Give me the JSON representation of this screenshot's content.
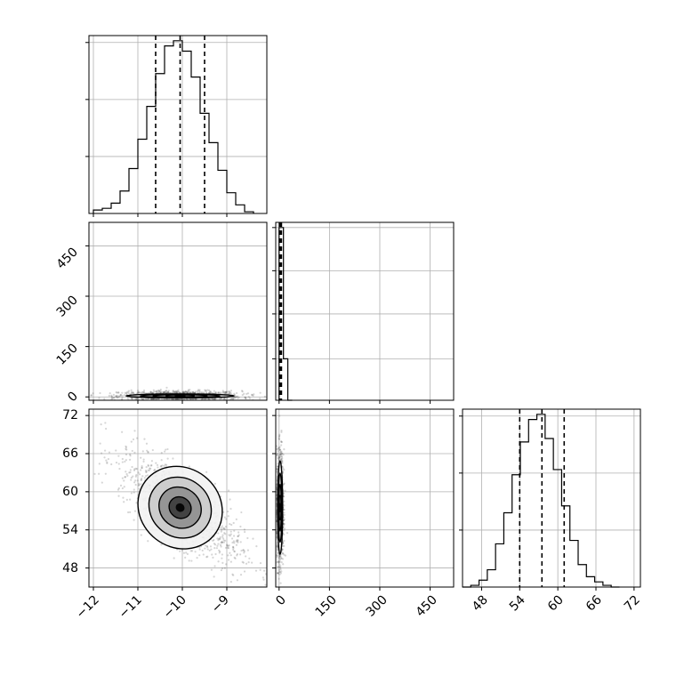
{
  "chart_data": {
    "type": "corner",
    "variables": 3,
    "grid": true,
    "colors": {
      "line": "#000000",
      "grid": "#b0b0b0",
      "points": "#444444"
    },
    "hist1": {
      "type": "histogram",
      "xlim": [
        -12.1,
        -8.1
      ],
      "bins_x": [
        -12.0,
        -11.8,
        -11.6,
        -11.4,
        -11.2,
        -11.0,
        -10.8,
        -10.6,
        -10.4,
        -10.2,
        -10.0,
        -9.8,
        -9.6,
        -9.4,
        -9.2,
        -9.0,
        -8.8,
        -8.6,
        -8.4
      ],
      "counts": [
        0.02,
        0.03,
        0.06,
        0.13,
        0.26,
        0.43,
        0.62,
        0.81,
        0.97,
        1.0,
        0.94,
        0.79,
        0.58,
        0.41,
        0.25,
        0.12,
        0.05,
        0.01
      ],
      "quantiles": [
        -10.6,
        -10.05,
        -9.5
      ]
    },
    "hist2": {
      "type": "histogram",
      "xlim": [
        -10,
        520
      ],
      "bins_x": [
        0,
        13,
        26,
        39
      ],
      "counts": [
        1.0,
        0.24,
        0.0
      ],
      "quantiles": [
        1,
        4,
        7
      ],
      "yticks_labels": [
        "0",
        "150",
        "300",
        "450"
      ]
    },
    "hist3": {
      "type": "histogram",
      "xlim": [
        45,
        73
      ],
      "bins_x": [
        45.0,
        46.3,
        47.6,
        48.9,
        50.2,
        51.5,
        52.8,
        54.1,
        55.4,
        56.7,
        58.0,
        59.3,
        60.6,
        61.9,
        63.2,
        64.5,
        65.8,
        67.1,
        68.4,
        69.7
      ],
      "counts": [
        0.0,
        0.01,
        0.04,
        0.1,
        0.25,
        0.43,
        0.65,
        0.84,
        0.97,
        1.0,
        0.86,
        0.68,
        0.47,
        0.27,
        0.13,
        0.06,
        0.03,
        0.01,
        0.0
      ],
      "quantiles": [
        54,
        57.5,
        61
      ]
    },
    "joint_x1_x2": {
      "type": "scatter-density",
      "xlim": [
        -12.1,
        -8.1
      ],
      "ylim": [
        -10,
        520
      ],
      "center": [
        -10.05,
        3
      ],
      "spread": [
        0.55,
        6
      ]
    },
    "joint_x1_x3": {
      "type": "scatter-density",
      "xlim": [
        -12.1,
        -8.1
      ],
      "ylim": [
        45,
        73
      ],
      "center": [
        -10.05,
        57.5
      ],
      "spread": [
        0.55,
        3.5
      ],
      "correlation": -0.75
    },
    "joint_x2_x3": {
      "type": "scatter-density",
      "xlim": [
        -10,
        520
      ],
      "ylim": [
        45,
        73
      ],
      "center": [
        3,
        57.5
      ],
      "spread": [
        4,
        3.5
      ]
    },
    "axis_x1_ticks": [
      "−12",
      "−11",
      "−10",
      "−9"
    ],
    "axis_x2_ticks": [
      "0",
      "150",
      "300",
      "450"
    ],
    "axis_x3_ticks": [
      "48",
      "54",
      "60",
      "66",
      "72"
    ],
    "axis_x3_yticks": [
      "48",
      "54",
      "60",
      "66",
      "72"
    ]
  }
}
